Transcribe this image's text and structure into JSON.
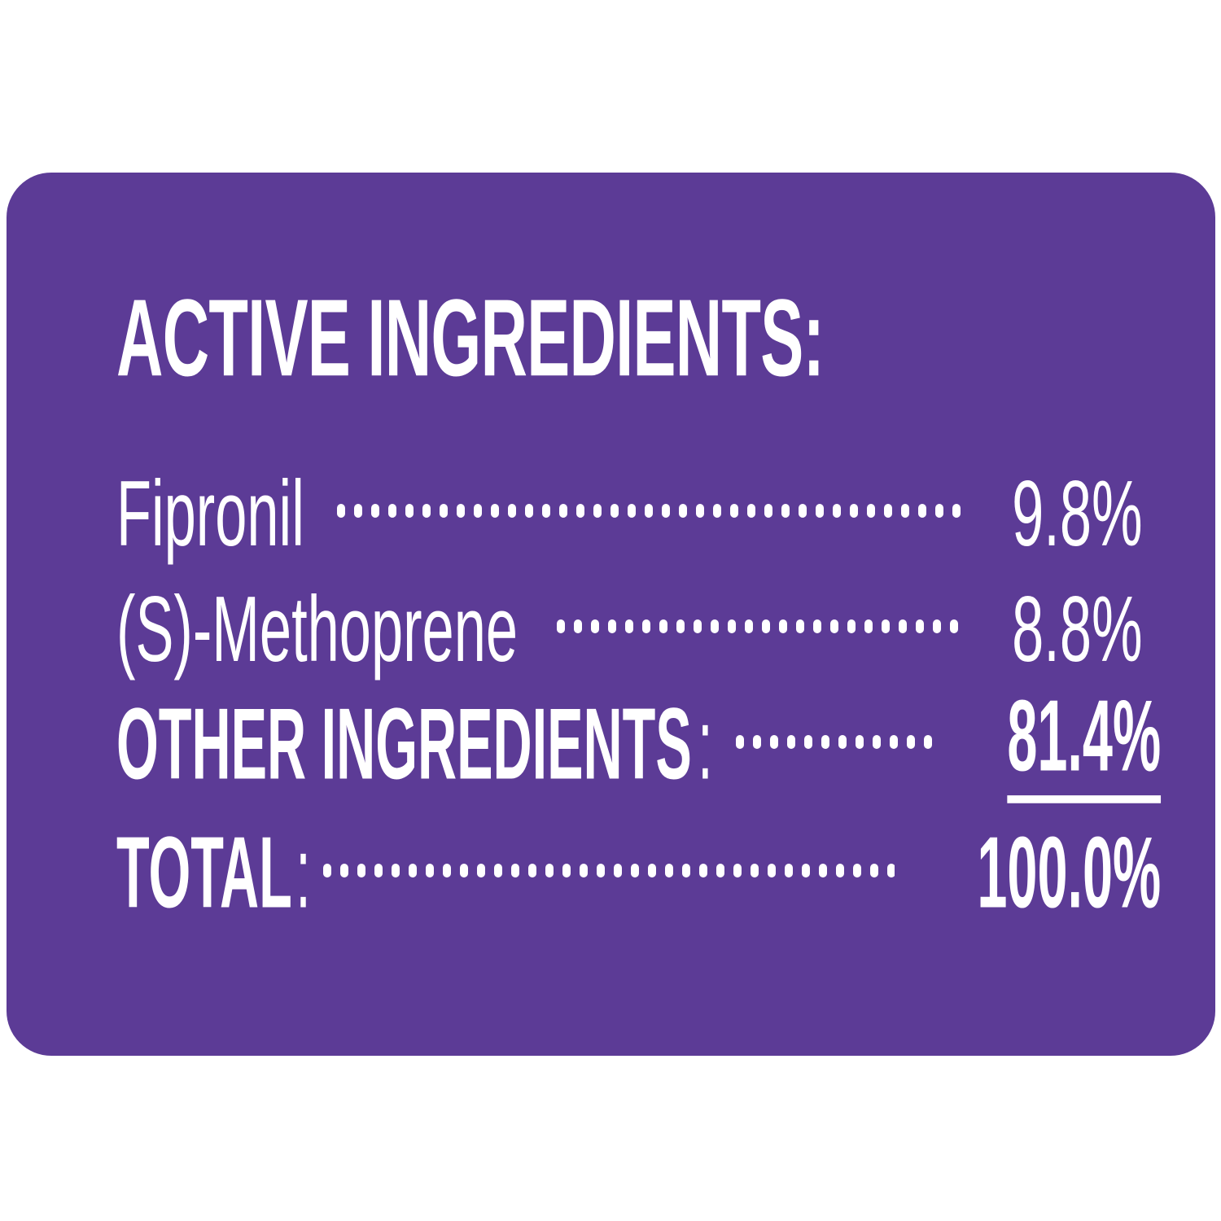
{
  "page": {
    "background": "#ffffff"
  },
  "panel": {
    "background": "#5C3B96",
    "text_color": "#ffffff"
  },
  "header": {
    "title": "ACTIVE INGREDIENTS:"
  },
  "ingredients": [
    {
      "label": "Fipronil",
      "colon": "",
      "value": "9.8%"
    },
    {
      "label": "(S)-Methoprene",
      "colon": "",
      "value": "8.8%"
    },
    {
      "label": "OTHER INGREDIENTS",
      "colon": ":",
      "value": "81.4%"
    },
    {
      "label": "TOTAL",
      "colon": ":",
      "value": "100.0%"
    }
  ]
}
